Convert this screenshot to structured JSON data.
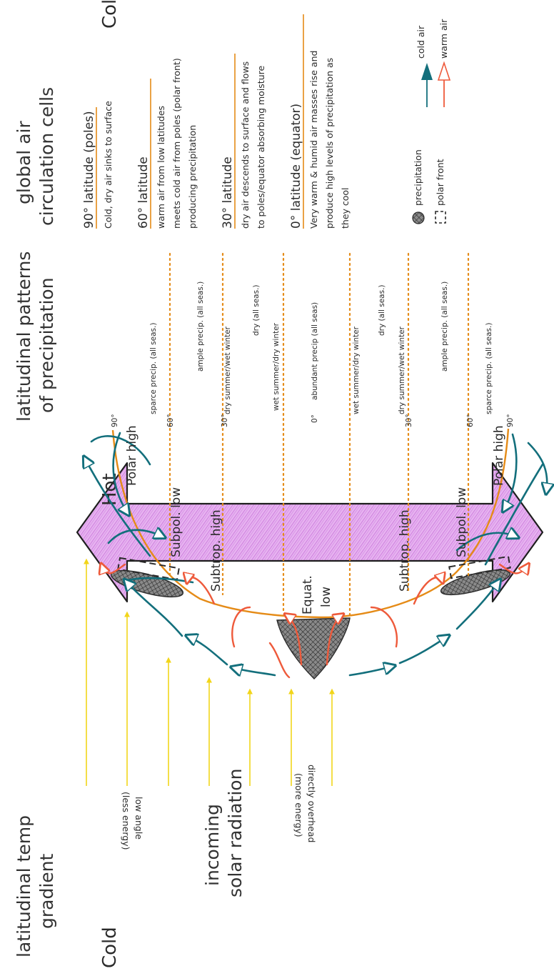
{
  "colors": {
    "cold_air": "#136f7c",
    "warm_air": "#ee5a3b",
    "boundary": "#e58b17",
    "solar": "#f2d51a",
    "gradient_fill": "#d98ee8",
    "gradient_stroke": "#1e1e1e"
  },
  "headers": {
    "temp_gradient": [
      "latitudinal temp",
      "gradient"
    ],
    "solar": [
      "incoming",
      "solar radiation"
    ],
    "precip": [
      "latitudinal patterns",
      "of precipitation"
    ],
    "cells": [
      "global air",
      "circulation cells"
    ]
  },
  "gradient_labels": {
    "left": "Cold",
    "center": "Hot",
    "right": "Cold"
  },
  "solar_labels": {
    "low": [
      "low angle",
      "(less energy)"
    ],
    "direct": [
      "directly overhead",
      "(more energy)"
    ]
  },
  "pressure_labels": {
    "polar_high_left": "Polar high",
    "subpolar_low_left": "Subpol. low",
    "subtrop_high_left": "Subtrop. high",
    "equat_low": [
      "Equat.",
      "low"
    ],
    "subtrop_high_right": "Subtrop. high",
    "subpolar_low_right": "Subpol. low",
    "polar_high_right": "Polar high"
  },
  "latitude_ticks": [
    "90°",
    "60°",
    "30°",
    "0°",
    "30°",
    "60°",
    "90°"
  ],
  "precip_zones": [
    "sparce precip. (all seas.)",
    "ample precip. (all seas.)",
    "dry summer/wet winter",
    "dry (all seas.)",
    "wet summer/dry winter",
    "abundant precip (all seas)",
    "wet summer/dry winter",
    "dry (all seas.)",
    "dry summer/wet winter",
    "ample precip. (all seas.)",
    "sparce precip. (all seas.)"
  ],
  "cells_notes": [
    {
      "title": "90° latitude (poles)",
      "lines": [
        "Cold, dry air sinks to surface"
      ]
    },
    {
      "title": "60° latitude",
      "lines": [
        "warm air from low latitudes",
        "meets cold air from poles (polar front)",
        "producing precipitation"
      ]
    },
    {
      "title": "30° latitude",
      "lines": [
        "dry air descends to surface and flows",
        "to poles/equator absorbing moisture"
      ]
    },
    {
      "title": "0° latitude (equator)",
      "lines": [
        "Very warm & humid air masses rise and",
        "produce high levels of precipitation as",
        "they cool"
      ]
    }
  ],
  "legend": {
    "precipitation": "precipitation",
    "polar_front": "polar front",
    "cold_air": "cold air",
    "warm_air": "warm air"
  }
}
